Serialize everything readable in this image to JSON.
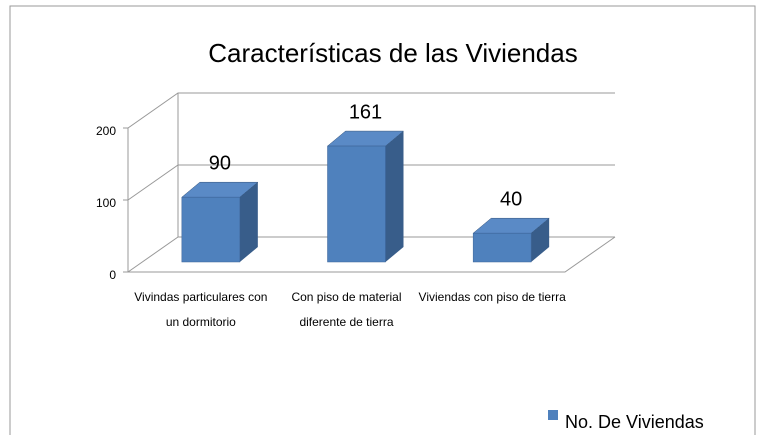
{
  "chart_data": {
    "type": "bar",
    "title": "Características de las Viviendas",
    "categories": [
      "Vivindas particulares con un dormitorio",
      "Con piso de material diferente de tierra",
      "Viviendas con piso de tierra"
    ],
    "series": [
      {
        "name": "No. De Viviendas",
        "color": "#4f81bd",
        "values": [
          90,
          161,
          40
        ]
      }
    ],
    "ylim": [
      0,
      200
    ],
    "yticks": [
      0,
      100,
      200
    ],
    "grid": true,
    "legend": "bottom-right"
  }
}
